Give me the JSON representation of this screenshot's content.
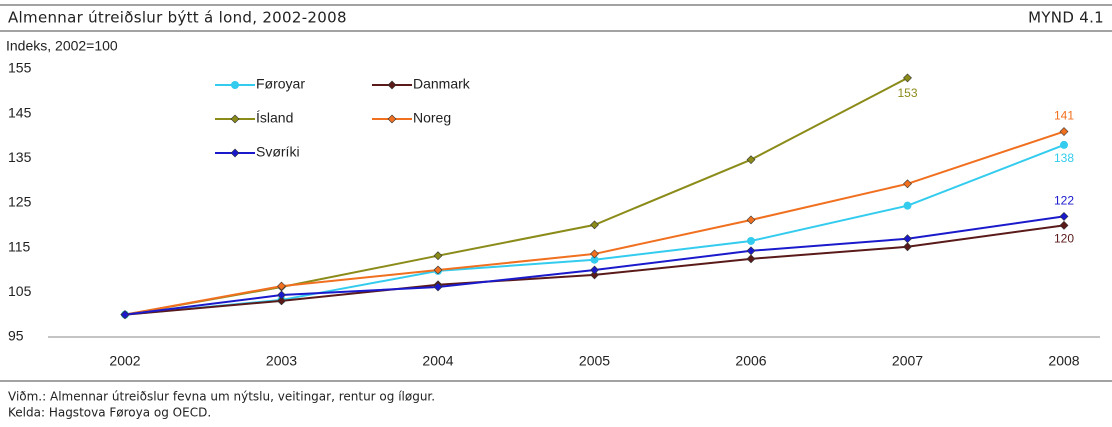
{
  "chart_data": {
    "type": "line",
    "title": "Almennar útreiðslur býtt á lond, 2002-2008",
    "figure_label": "MYND 4.1",
    "y_label": "Indeks, 2002=100",
    "categories": [
      "2002",
      "2003",
      "2004",
      "2005",
      "2006",
      "2007",
      "2008"
    ],
    "series": [
      {
        "name": "Føroyar",
        "color": "#33ccee",
        "marker": "circle",
        "values": [
          100,
          103.3,
          109.8,
          112.3,
          116.5,
          124.4,
          138
        ]
      },
      {
        "name": "Danmark",
        "color": "#5a1a1a",
        "marker": "diamond",
        "values": [
          100,
          103.1,
          106.7,
          108.9,
          112.5,
          115.2,
          120
        ]
      },
      {
        "name": "Ísland",
        "color": "#8b8b1a",
        "marker": "diamond",
        "values": [
          100,
          106.2,
          113.2,
          120.1,
          134.7,
          153,
          null
        ]
      },
      {
        "name": "Noreg",
        "color": "#f07020",
        "marker": "diamond",
        "values": [
          100,
          106.4,
          110,
          113.6,
          121.2,
          129.3,
          141
        ]
      },
      {
        "name": "Svøríki",
        "color": "#1a1acc",
        "marker": "diamond",
        "values": [
          100,
          104.4,
          106.2,
          110,
          114.3,
          117,
          122
        ]
      }
    ],
    "data_labels": "last",
    "ylim": [
      95,
      155
    ],
    "yticks": [
      95,
      105,
      115,
      125,
      135,
      145,
      155
    ],
    "grid": false
  },
  "notes": [
    "Viðm.: Almennar útreiðslur fevna um nýtslu, veitingar, rentur og íløgur.",
    "Kelda: Hagstova Føroya og OECD."
  ]
}
